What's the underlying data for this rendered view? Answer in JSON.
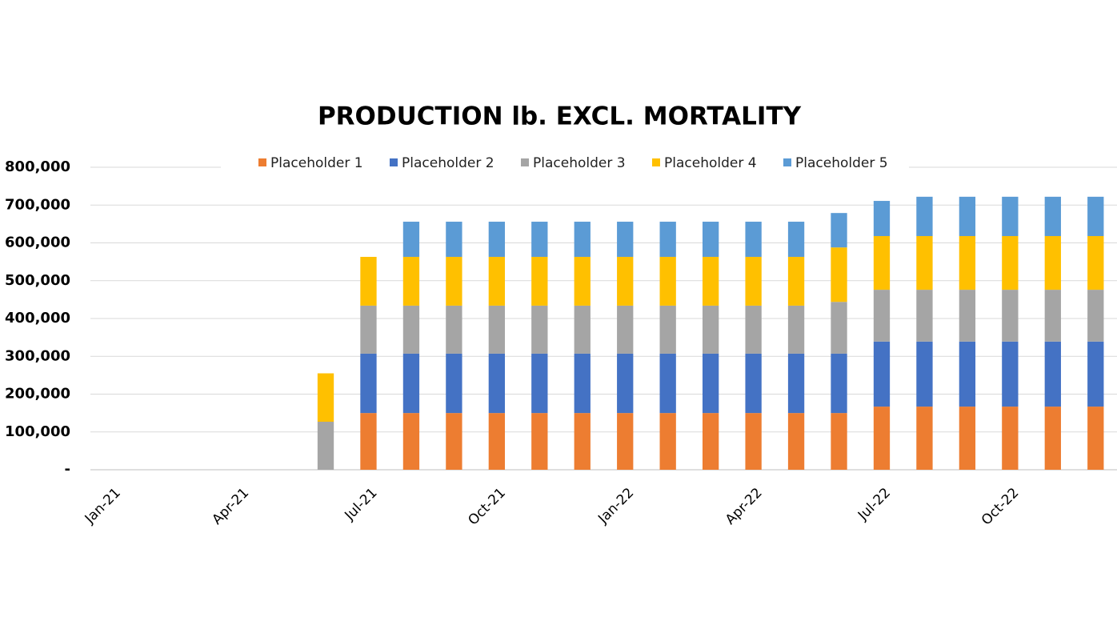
{
  "chart_data": {
    "type": "stacked_bar",
    "title": "PRODUCTION lb. EXCL. MORTALITY",
    "categories": [
      "Jan-21",
      null,
      null,
      "Apr-21",
      null,
      null,
      "Jul-21",
      null,
      null,
      "Oct-21",
      null,
      null,
      "Jan-22",
      null,
      null,
      "Apr-22",
      null,
      null,
      "Jul-22",
      null,
      null,
      "Oct-22",
      null,
      null
    ],
    "series": [
      {
        "name": "Placeholder 1",
        "color": "#ed7d31",
        "values": [
          0,
          0,
          0,
          0,
          0,
          0,
          150000,
          150000,
          150000,
          150000,
          150000,
          150000,
          150000,
          150000,
          150000,
          150000,
          150000,
          150000,
          167000,
          167000,
          167000,
          167000,
          167000,
          167000
        ]
      },
      {
        "name": "Placeholder 2",
        "color": "#4472c4",
        "values": [
          0,
          0,
          0,
          0,
          0,
          0,
          157000,
          157000,
          157000,
          157000,
          157000,
          157000,
          157000,
          157000,
          157000,
          157000,
          157000,
          157000,
          172000,
          172000,
          172000,
          172000,
          172000,
          172000
        ]
      },
      {
        "name": "Placeholder 3",
        "color": "#a5a5a5",
        "values": [
          0,
          0,
          0,
          0,
          0,
          127000,
          127000,
          127000,
          127000,
          127000,
          127000,
          127000,
          127000,
          127000,
          127000,
          127000,
          127000,
          137000,
          137000,
          137000,
          137000,
          137000,
          137000,
          137000
        ]
      },
      {
        "name": "Placeholder 4",
        "color": "#ffc000",
        "values": [
          0,
          0,
          0,
          0,
          0,
          128000,
          129000,
          129000,
          129000,
          129000,
          129000,
          129000,
          129000,
          129000,
          129000,
          129000,
          129000,
          144000,
          142000,
          142000,
          142000,
          142000,
          142000,
          142000
        ]
      },
      {
        "name": "Placeholder 5",
        "color": "#5b9bd5",
        "values": [
          0,
          0,
          0,
          0,
          0,
          0,
          0,
          93000,
          93000,
          93000,
          93000,
          93000,
          93000,
          93000,
          93000,
          93000,
          93000,
          91000,
          93000,
          104000,
          104000,
          104000,
          104000,
          104000
        ]
      }
    ],
    "ylim": [
      0,
      800000
    ],
    "yticks": [
      {
        "value": 0,
        "label": "-"
      },
      {
        "value": 100000,
        "label": "100,000"
      },
      {
        "value": 200000,
        "label": "200,000"
      },
      {
        "value": 300000,
        "label": "300,000"
      },
      {
        "value": 400000,
        "label": "400,000"
      },
      {
        "value": 500000,
        "label": "500,000"
      },
      {
        "value": 600000,
        "label": "600,000"
      },
      {
        "value": 700000,
        "label": "700,000"
      },
      {
        "value": 800000,
        "label": "800,000"
      }
    ],
    "grid": true,
    "legend": "top"
  }
}
